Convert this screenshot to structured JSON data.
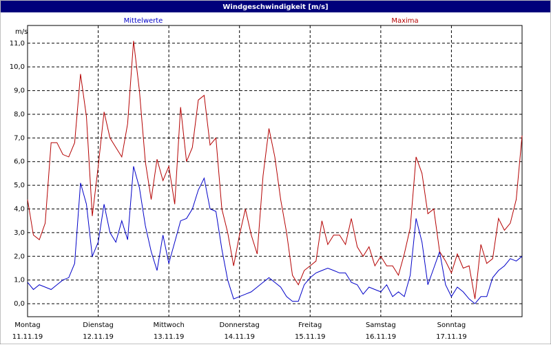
{
  "chart_data": {
    "type": "line",
    "title": "Windgeschwindigkeit [m/s]",
    "y_label": "m/s",
    "x": [
      0,
      2,
      4,
      6,
      8,
      10,
      12,
      14,
      16,
      18,
      20,
      22,
      24,
      26,
      28,
      30,
      32,
      34,
      36,
      38,
      40,
      42,
      44,
      46,
      48,
      50,
      52,
      54,
      56,
      58,
      60,
      62,
      64,
      66,
      68,
      70,
      72,
      74,
      76,
      78,
      80,
      82,
      84,
      86,
      88,
      90,
      92,
      94,
      96,
      98,
      100,
      102,
      104,
      106,
      108,
      110,
      112,
      114,
      116,
      118,
      120,
      122,
      124,
      126,
      128,
      130,
      132,
      134,
      136,
      138,
      140,
      142,
      144,
      146,
      148,
      150,
      152,
      154,
      156,
      158,
      160,
      162,
      164,
      166,
      168
    ],
    "xlim": [
      0,
      168
    ],
    "xticks": [
      {
        "value": 0,
        "label": "Montag"
      },
      {
        "value": 24,
        "label": "Dienstag"
      },
      {
        "value": 48,
        "label": "Mittwoch"
      },
      {
        "value": 72,
        "label": "Donnerstag"
      },
      {
        "value": 96,
        "label": "Freitag"
      },
      {
        "value": 120,
        "label": "Samstag"
      },
      {
        "value": 144,
        "label": "Sonntag"
      }
    ],
    "xtick_dates": [
      "11.11.19",
      "12.11.19",
      "13.11.19",
      "14.11.19",
      "15.11.19",
      "16.11.19",
      "17.11.19"
    ],
    "ylim": [
      -0.55,
      11.75
    ],
    "yticks": [
      {
        "value": 0,
        "label": "0,0"
      },
      {
        "value": 1,
        "label": "1,0"
      },
      {
        "value": 2,
        "label": "2,0"
      },
      {
        "value": 3,
        "label": "3,0"
      },
      {
        "value": 4,
        "label": "4,0"
      },
      {
        "value": 5,
        "label": "5,0"
      },
      {
        "value": 6,
        "label": "6,0"
      },
      {
        "value": 7,
        "label": "7,0"
      },
      {
        "value": 8,
        "label": "8,0"
      },
      {
        "value": 9,
        "label": "9,0"
      },
      {
        "value": 10,
        "label": "10,0"
      },
      {
        "value": 11,
        "label": "11,0"
      }
    ],
    "grid": true,
    "series": [
      {
        "name": "Mittelwerte",
        "color": "#0000c8",
        "values": [
          0.9,
          0.6,
          0.8,
          0.7,
          0.6,
          0.8,
          1.0,
          1.1,
          1.7,
          5.1,
          4.2,
          2.0,
          2.6,
          4.2,
          3.0,
          2.6,
          3.5,
          2.7,
          5.8,
          4.9,
          3.3,
          2.2,
          1.4,
          2.9,
          1.7,
          2.6,
          3.5,
          3.6,
          4.0,
          4.8,
          5.3,
          4.0,
          3.9,
          2.3,
          1.0,
          0.2,
          0.3,
          0.4,
          0.5,
          0.7,
          0.9,
          1.1,
          0.9,
          0.7,
          0.3,
          0.1,
          0.1,
          0.8,
          1.1,
          1.3,
          1.4,
          1.5,
          1.4,
          1.3,
          1.3,
          0.9,
          0.8,
          0.4,
          0.7,
          0.6,
          0.5,
          0.8,
          0.3,
          0.5,
          0.3,
          1.2,
          3.6,
          2.6,
          0.8,
          1.5,
          2.2,
          0.8,
          0.3,
          0.7,
          0.5,
          0.2,
          0.0,
          0.3,
          0.3,
          1.1,
          1.4,
          1.6,
          1.9,
          1.8,
          2.0
        ]
      },
      {
        "name": "Maxima",
        "color": "#b40000",
        "values": [
          4.4,
          2.9,
          2.7,
          3.4,
          6.8,
          6.8,
          6.3,
          6.2,
          6.8,
          9.7,
          7.9,
          3.7,
          5.8,
          8.1,
          7.0,
          6.6,
          6.2,
          7.6,
          11.1,
          9.0,
          6.0,
          4.4,
          6.1,
          5.2,
          5.8,
          4.2,
          8.3,
          6.0,
          6.6,
          8.6,
          8.8,
          6.7,
          7.0,
          4.0,
          3.0,
          1.6,
          2.9,
          4.0,
          2.9,
          2.1,
          5.4,
          7.4,
          6.2,
          4.4,
          3.0,
          1.2,
          0.8,
          1.4,
          1.6,
          1.8,
          3.5,
          2.5,
          2.9,
          2.9,
          2.5,
          3.6,
          2.4,
          2.0,
          2.4,
          1.6,
          2.0,
          1.6,
          1.6,
          1.2,
          2.1,
          3.2,
          6.2,
          5.5,
          3.8,
          4.0,
          2.2,
          1.8,
          1.3,
          2.1,
          1.5,
          1.6,
          0.2,
          2.5,
          1.7,
          1.9,
          3.6,
          3.1,
          3.4,
          4.4,
          7.1
        ]
      }
    ]
  }
}
